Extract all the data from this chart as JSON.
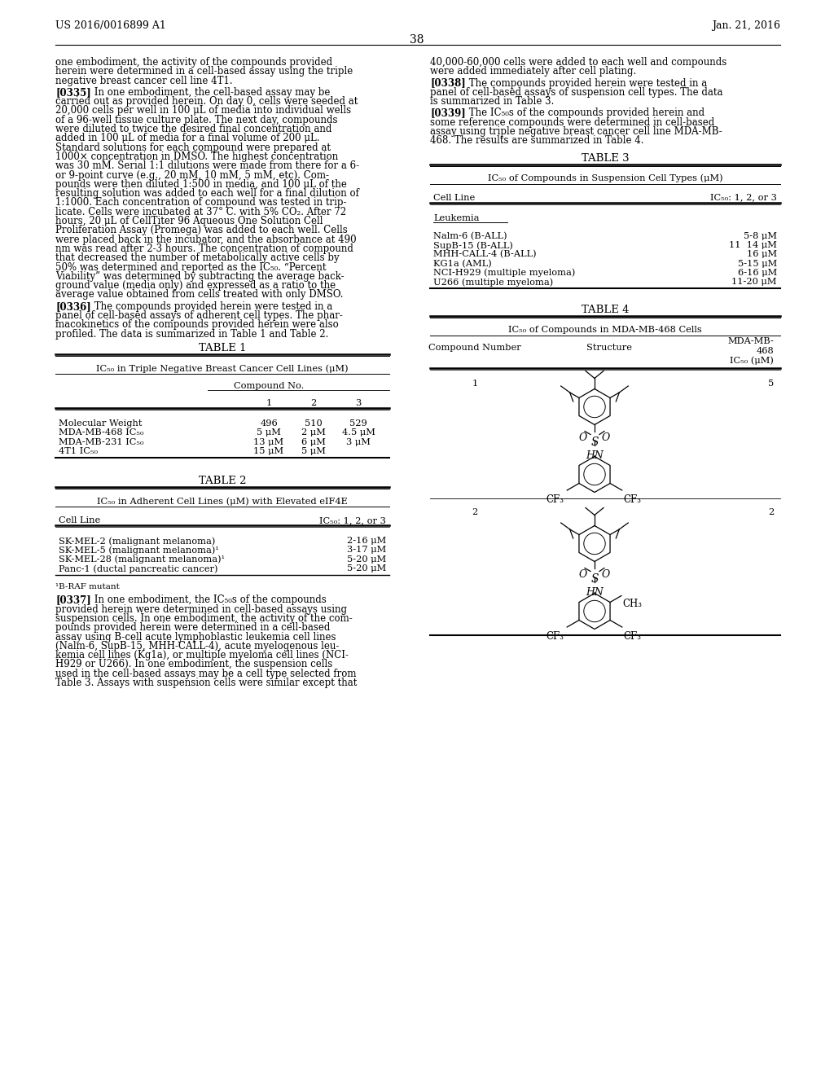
{
  "header_left": "US 2016/0016899 A1",
  "header_right": "Jan. 21, 2016",
  "page_number": "38",
  "bg_color": "#ffffff",
  "left_para0": "one embodiment, the activity of the compounds provided\nherein were determined in a cell-based assay using the triple\nnegative breast cancer cell line 4T1.",
  "p335_lines": [
    "[0335]   In one embodiment, the cell-based assay may be",
    "carried out as provided herein. On day 0, cells were seeded at",
    "20,000 cells per well in 100 μL of media into individual wells",
    "of a 96-well tissue culture plate. The next day, compounds",
    "were diluted to twice the desired final concentration and",
    "added in 100 μL of media for a final volume of 200 μL.",
    "Standard solutions for each compound were prepared at",
    "1000× concentration in DMSO. The highest concentration",
    "was 30 mM. Serial 1:1 dilutions were made from there for a 6-",
    "or 9-point curve (e.g., 20 mM, 10 mM, 5 mM, etc). Com-",
    "pounds were then diluted 1:500 in media, and 100 μL of the",
    "resulting solution was added to each well for a final dilution of",
    "1:1000. Each concentration of compound was tested in trip-",
    "licate. Cells were incubated at 37° C. with 5% CO₂. After 72",
    "hours, 20 μL of CellTiter 96 Aqueous One Solution Cell",
    "Proliferation Assay (Promega) was added to each well. Cells",
    "were placed back in the incubator, and the absorbance at 490",
    "nm was read after 2-3 hours. The concentration of compound",
    "that decreased the number of metabolically active cells by",
    "50% was determined and reported as the IC₅₀. “Percent",
    "Viability” was determined by subtracting the average back-",
    "ground value (media only) and expressed as a ratio to the",
    "average value obtained from cells treated with only DMSO."
  ],
  "p336_lines": [
    "[0336]   The compounds provided herein were tested in a",
    "panel of cell-based assays of adherent cell types. The phar-",
    "macokinetics of the compounds provided herein were also",
    "profiled. The data is summarized in Table 1 and Table 2."
  ],
  "right_para0": "40,000-60,000 cells were added to each well and compounds\nwere added immediately after cell plating.",
  "p338_lines": [
    "[0338]   The compounds provided herein were tested in a",
    "panel of cell-based assays of suspension cell types. The data",
    "is summarized in Table 3."
  ],
  "p339_lines": [
    "[0339]   The IC₅₀s of the compounds provided herein and",
    "some reference compounds were determined in cell-based",
    "assay using triple negative breast cancer cell line MDA-MB-",
    "468. The results are summarized in Table 4."
  ],
  "p337_lines": [
    "[0337]   In one embodiment, the IC₅₀s of the compounds",
    "provided herein were determined in cell-based assays using",
    "suspension cells. In one embodiment, the activity of the com-",
    "pounds provided herein were determined in a cell-based",
    "assay using B-cell acute lymphoblastic leukemia cell lines",
    "(Nalm-6, SupB-15, MHH-CALL-4), acute myelogenous leu-",
    "kemia cell lines (Kg1a), or multiple myeloma cell lines (NCI-",
    "H929 or U266). In one embodiment, the suspension cells",
    "used in the cell-based assays may be a cell type selected from",
    "Table 3. Assays with suspension cells were similar except that"
  ],
  "table1": {
    "title": "TABLE 1",
    "subtitle": "IC₅₀ in Triple Negative Breast Cancer Cell Lines (μM)",
    "compound_header": "Compound No.",
    "col_headers": [
      "",
      "1",
      "2",
      "3"
    ],
    "rows": [
      [
        "Molecular Weight",
        "496",
        "510",
        "529"
      ],
      [
        "MDA-MB-468 IC₅₀",
        "5 μM",
        "2 μM",
        "4.5 μM"
      ],
      [
        "MDA-MB-231 IC₅₀",
        "13 μM",
        "6 μM",
        "3 μM"
      ],
      [
        "4T1 IC₅₀",
        "15 μM",
        "5 μM",
        ""
      ]
    ]
  },
  "table2": {
    "title": "TABLE 2",
    "subtitle": "IC₅₀ in Adherent Cell Lines (μM) with Elevated eIF4E",
    "col_headers": [
      "Cell Line",
      "IC₅₀: 1, 2, or 3"
    ],
    "rows": [
      [
        "SK-MEL-2 (malignant melanoma)",
        "2-16 μM"
      ],
      [
        "SK-MEL-5 (malignant melanoma)¹",
        "3-17 μM"
      ],
      [
        "SK-MEL-28 (malignant melanoma)¹",
        "5-20 μM"
      ],
      [
        "Panc-1 (ductal pancreatic cancer)",
        "5-20 μM"
      ]
    ],
    "footnote": "¹B-RAF mutant"
  },
  "table3": {
    "title": "TABLE 3",
    "subtitle": "IC₅₀ of Compounds in Suspension Cell Types (μM)",
    "col_headers": [
      "Cell Line",
      "IC₅₀: 1, 2, or 3"
    ],
    "section_header": "Leukemia",
    "rows": [
      [
        "Nalm-6 (B-ALL)",
        "5-8 μM"
      ],
      [
        "SupB-15 (B-ALL)",
        "11  14 μM"
      ],
      [
        "MHH-CALL-4 (B-ALL)",
        "16 μM"
      ],
      [
        "KG1a (AML)",
        "5-15 μM"
      ],
      [
        "NCI-H929 (multiple myeloma)",
        "6-16 μM"
      ],
      [
        "U266 (multiple myeloma)",
        "11-20 μM"
      ]
    ]
  },
  "table4": {
    "title": "TABLE 4",
    "subtitle": "IC₅₀ of Compounds in MDA-MB-468 Cells",
    "col_headers": [
      "Compound Number",
      "Structure",
      "MDA-MB-468 IC₅₀ (μM)"
    ],
    "rows": [
      [
        "1",
        "5"
      ],
      [
        "2",
        "2"
      ]
    ]
  }
}
